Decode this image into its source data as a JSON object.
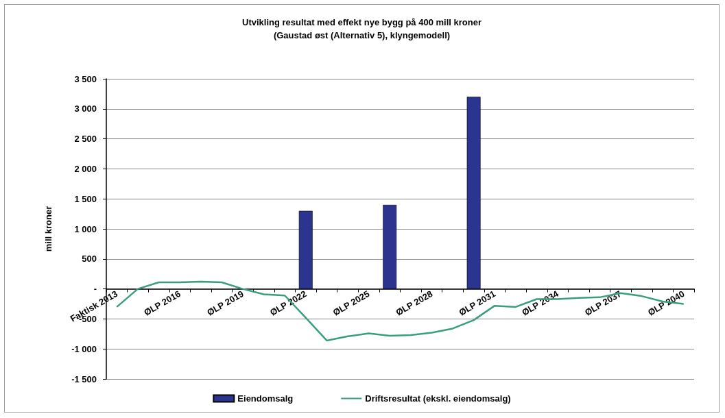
{
  "chart_data": {
    "type": "bar",
    "title": "Utvikling resultat med effekt nye bygg på 400 mill kroner",
    "subtitle": "(Gaustad øst (Alternativ 5), klyngemodell)",
    "ylabel": "mill kroner",
    "categories": [
      "Faktisk 2013",
      null,
      null,
      "ØLP 2016",
      null,
      null,
      "ØLP 2019",
      null,
      null,
      "ØLP 2022",
      null,
      null,
      "ØLP 2025",
      null,
      null,
      "ØLP 2028",
      null,
      null,
      "ØLP 2031",
      null,
      null,
      "ØLP 2034",
      null,
      null,
      "ØLP 2037",
      null,
      null,
      "ØLP 2040"
    ],
    "series": [
      {
        "name": "Eiendomsalg",
        "color": "#2b3590",
        "values": [
          null,
          null,
          null,
          null,
          null,
          null,
          null,
          null,
          null,
          1300,
          null,
          null,
          null,
          1400,
          null,
          null,
          null,
          3200,
          null,
          null,
          null,
          null,
          null,
          null,
          null,
          null,
          null,
          null
        ]
      },
      {
        "name": "Driftsresultat (ekskl. eiendomsalg)",
        "type": "line",
        "color": "#3a9e7c",
        "values": [
          -300,
          0,
          110,
          110,
          120,
          110,
          0,
          -90,
          -110,
          -480,
          -860,
          -790,
          -740,
          -780,
          -770,
          -730,
          -660,
          -520,
          -280,
          -300,
          -170,
          -170,
          -150,
          -140,
          -70,
          -120,
          -210,
          -250
        ]
      }
    ],
    "ylim": [
      -1500,
      3500
    ],
    "yticks": [
      {
        "value": -1500,
        "label": "-1 500"
      },
      {
        "value": -1000,
        "label": "-1 000"
      },
      -500,
      {
        "value": 0,
        "label": "-"
      },
      500,
      {
        "value": 1000,
        "label": "1 000"
      },
      {
        "value": 1500,
        "label": "1 500"
      },
      {
        "value": 2000,
        "label": "2 000"
      },
      {
        "value": 2500,
        "label": "2 500"
      },
      {
        "value": 3000,
        "label": "3 000"
      },
      {
        "value": 3500,
        "label": "3 500"
      }
    ],
    "grid": "y",
    "legend": "bottom",
    "marker": "none",
    "line_style": "solid"
  }
}
